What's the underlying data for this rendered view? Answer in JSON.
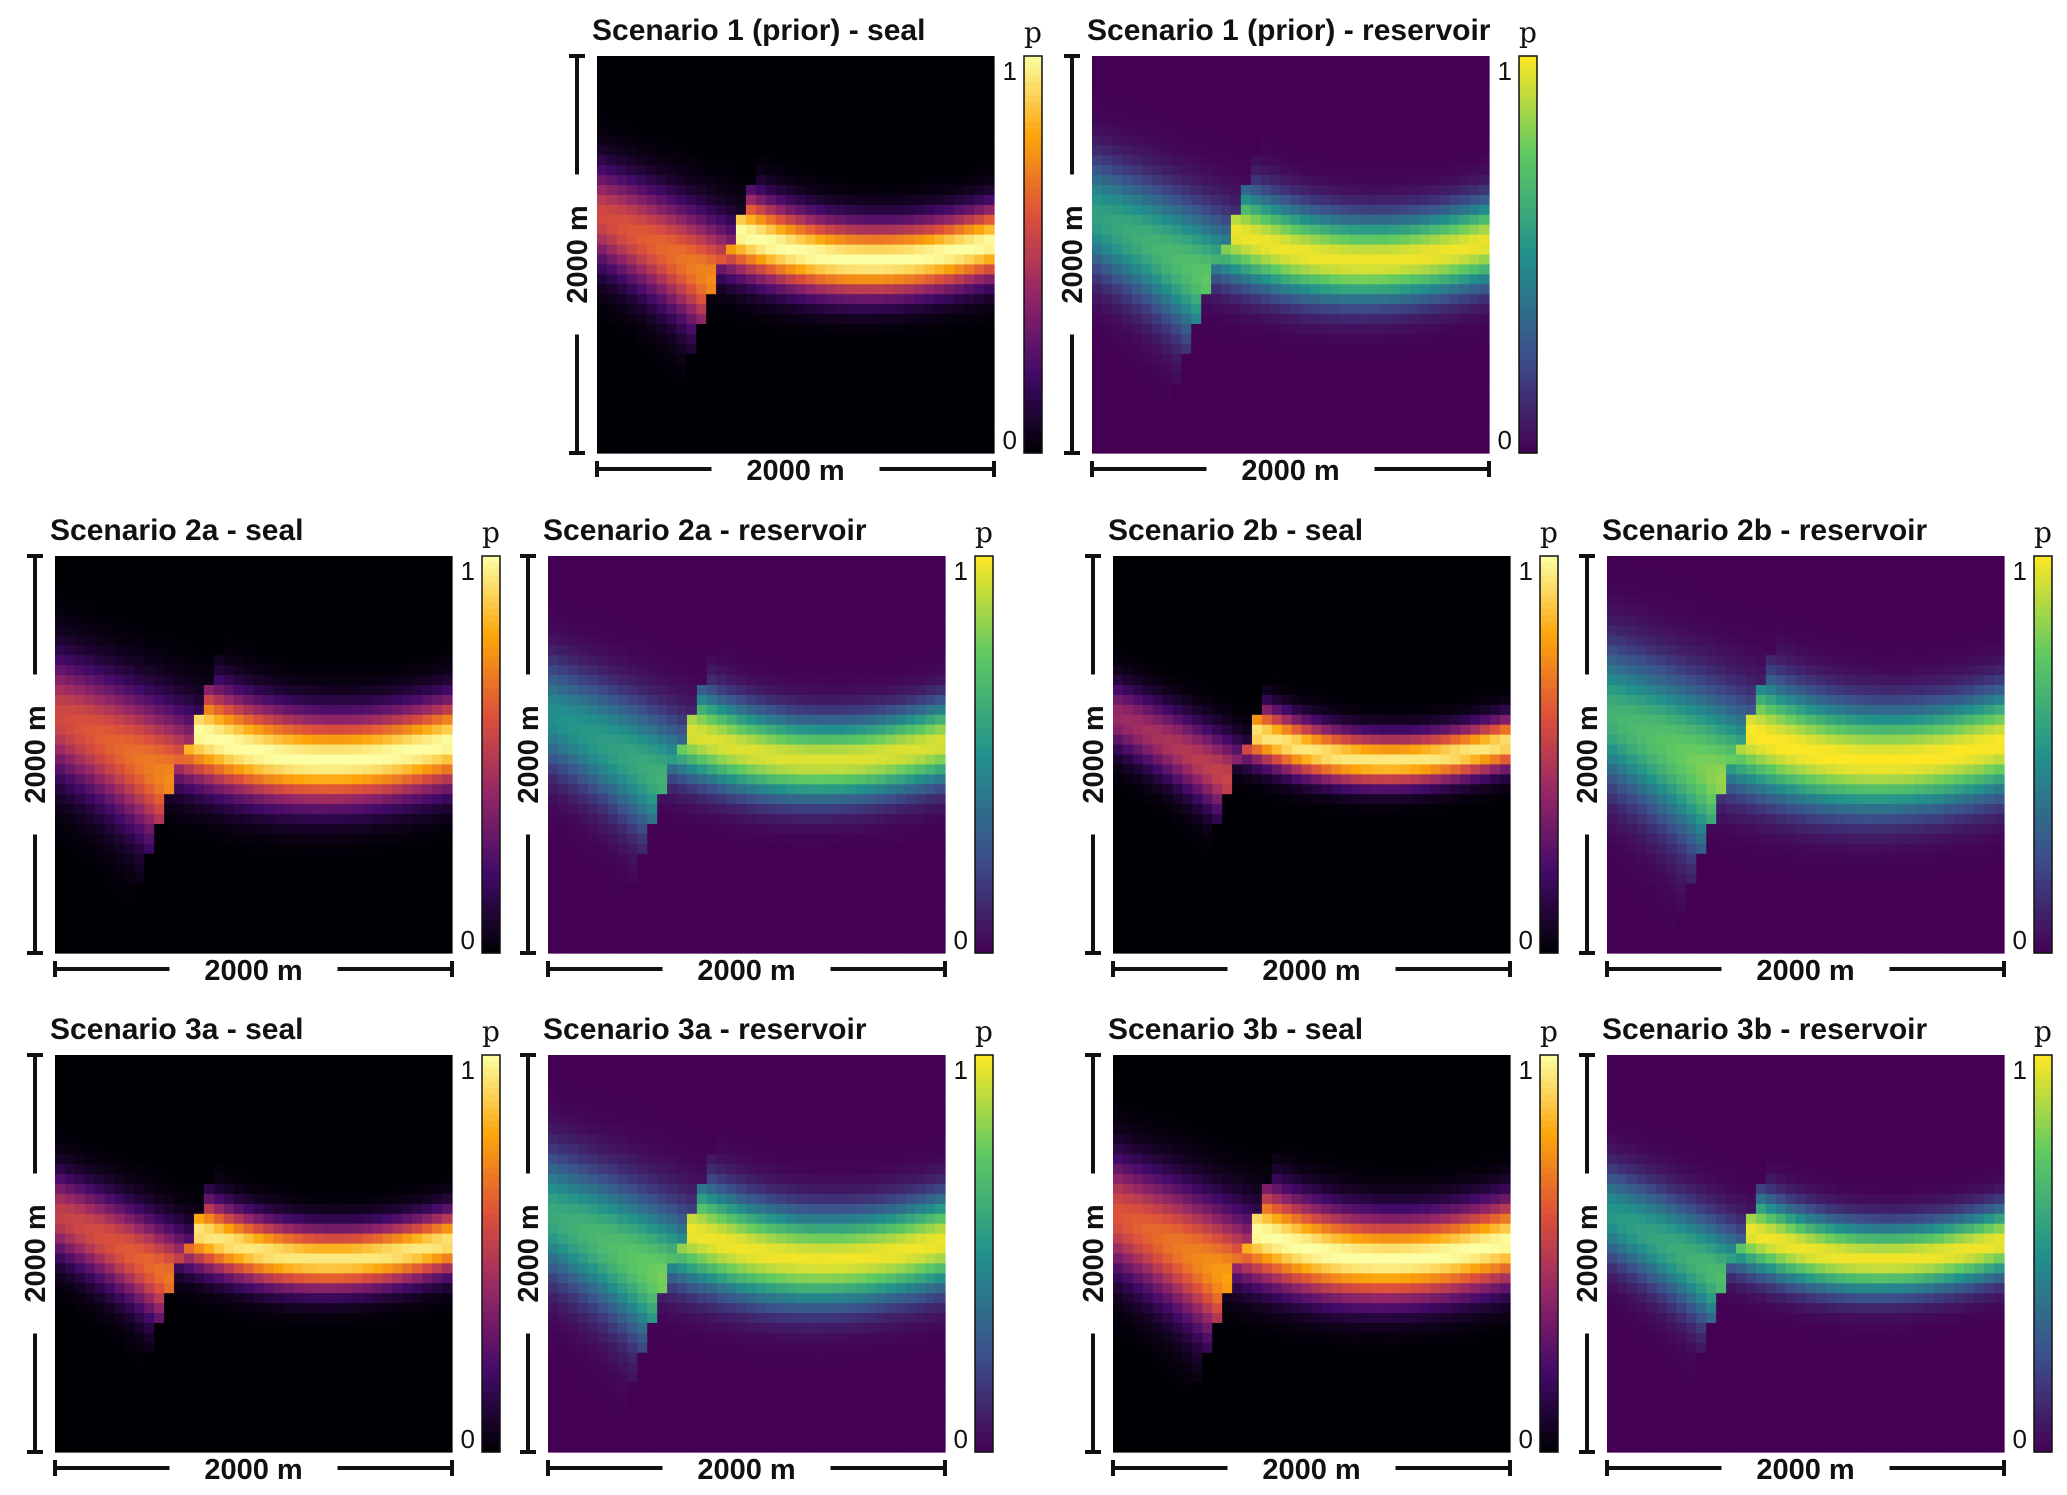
{
  "figure": {
    "scale_bar_label": "2000 m",
    "colorbar_label": "p",
    "colorbar_min": "0",
    "colorbar_max": "1"
  },
  "colormaps": {
    "seal": "inferno",
    "reservoir": "viridis",
    "seal_stops": [
      "#000004",
      "#420a68",
      "#932667",
      "#dd513a",
      "#fca50a",
      "#fcffa4"
    ],
    "reservoir_stops": [
      "#440154",
      "#3b528b",
      "#21918c",
      "#5ec962",
      "#fde725"
    ]
  },
  "chart_data": [
    {
      "type": "heatmap",
      "title": "Scenario 1 (prior) - seal",
      "colormap": "inferno",
      "xlabel": "2000 m",
      "ylabel": "2000 m",
      "colorbar": {
        "label": "p",
        "range": [
          0,
          1
        ]
      },
      "field": {
        "left_max": 0.75,
        "right_max": 1.0,
        "band_width_m": 200
      }
    },
    {
      "type": "heatmap",
      "title": "Scenario 1 (prior) - reservoir",
      "colormap": "viridis",
      "xlabel": "2000 m",
      "ylabel": "2000 m",
      "colorbar": {
        "label": "p",
        "range": [
          0,
          1
        ]
      },
      "field": {
        "left_max": 0.75,
        "right_max": 0.98,
        "band_width_m": 230
      }
    },
    {
      "type": "heatmap",
      "title": "Scenario 2a - seal",
      "colormap": "inferno",
      "xlabel": "2000 m",
      "ylabel": "2000 m",
      "colorbar": {
        "label": "p",
        "range": [
          0,
          1
        ]
      },
      "field": {
        "left_max": 0.75,
        "right_max": 1.0,
        "band_width_m": 240
      }
    },
    {
      "type": "heatmap",
      "title": "Scenario 2a - reservoir",
      "colormap": "viridis",
      "xlabel": "2000 m",
      "ylabel": "2000 m",
      "colorbar": {
        "label": "p",
        "range": [
          0,
          1
        ]
      },
      "field": {
        "left_max": 0.65,
        "right_max": 0.95,
        "band_width_m": 220
      }
    },
    {
      "type": "heatmap",
      "title": "Scenario 2b  - seal",
      "colormap": "inferno",
      "xlabel": "2000 m",
      "ylabel": "2000 m",
      "colorbar": {
        "label": "p",
        "range": [
          0,
          1
        ]
      },
      "field": {
        "left_max": 0.55,
        "right_max": 0.95,
        "band_width_m": 140
      }
    },
    {
      "type": "heatmap",
      "title": "Scenario 2b - reservoir",
      "colormap": "viridis",
      "xlabel": "2000 m",
      "ylabel": "2000 m",
      "colorbar": {
        "label": "p",
        "range": [
          0,
          1
        ]
      },
      "field": {
        "left_max": 0.85,
        "right_max": 1.0,
        "band_width_m": 280
      }
    },
    {
      "type": "heatmap",
      "title": "Scenario 3a - seal",
      "colormap": "inferno",
      "xlabel": "2000 m",
      "ylabel": "2000 m",
      "colorbar": {
        "label": "p",
        "range": [
          0,
          1
        ]
      },
      "field": {
        "left_max": 0.7,
        "right_max": 0.95,
        "band_width_m": 170
      }
    },
    {
      "type": "heatmap",
      "title": "Scenario 3a - reservoir",
      "colormap": "viridis",
      "xlabel": "2000 m",
      "ylabel": "2000 m",
      "colorbar": {
        "label": "p",
        "range": [
          0,
          1
        ]
      },
      "field": {
        "left_max": 0.8,
        "right_max": 0.98,
        "band_width_m": 250
      }
    },
    {
      "type": "heatmap",
      "title": "Scenario 3b - seal",
      "colormap": "inferno",
      "xlabel": "2000 m",
      "ylabel": "2000 m",
      "colorbar": {
        "label": "p",
        "range": [
          0,
          1
        ]
      },
      "field": {
        "left_max": 0.8,
        "right_max": 1.0,
        "band_width_m": 230
      }
    },
    {
      "type": "heatmap",
      "title": "Scenario 3b - reservoir",
      "colormap": "viridis",
      "xlabel": "2000 m",
      "ylabel": "2000 m",
      "colorbar": {
        "label": "p",
        "range": [
          0,
          1
        ]
      },
      "field": {
        "left_max": 0.7,
        "right_max": 0.98,
        "band_width_m": 190
      }
    }
  ]
}
